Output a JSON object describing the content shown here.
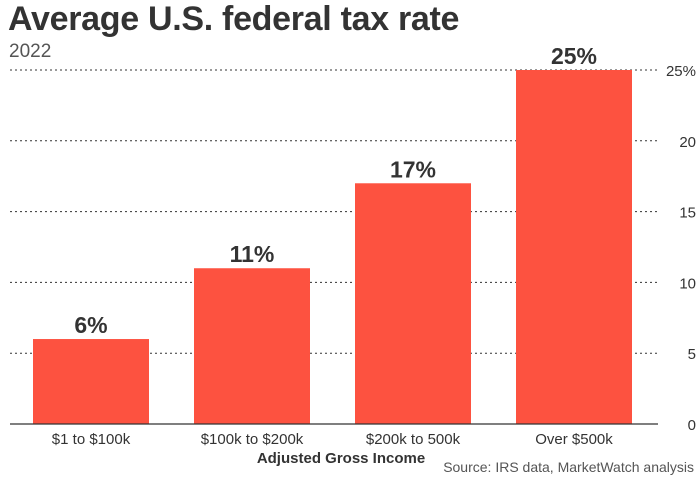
{
  "title": "Average U.S. federal tax rate",
  "subtitle": "2022",
  "source": "Source: IRS data, MarketWatch analysis",
  "colors": {
    "bar": "#fd5240",
    "text": "#333333",
    "grid": "#333333"
  },
  "chart_data": {
    "type": "bar",
    "title": "Average U.S. federal tax rate",
    "subtitle": "2022",
    "xlabel": "Adjusted Gross Income",
    "ylabel": "",
    "categories": [
      "$1 to $100k",
      "$100k to $200k",
      "$200k to 500k",
      "Over $500k"
    ],
    "values": [
      6,
      11,
      17,
      25
    ],
    "data_labels": [
      "6%",
      "11%",
      "17%",
      "25%"
    ],
    "ylim": [
      0,
      25
    ],
    "yticks": [
      0,
      5,
      10,
      15,
      20
    ],
    "ytick_labels": [
      "0",
      "5",
      "10",
      "15",
      "20"
    ],
    "top_tick_label": "25%",
    "grid": true,
    "axis_side": "right"
  }
}
